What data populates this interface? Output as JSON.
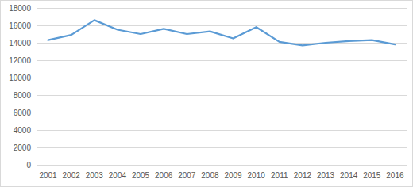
{
  "chart_data": {
    "type": "line",
    "categories": [
      "2001",
      "2002",
      "2003",
      "2004",
      "2005",
      "2006",
      "2007",
      "2008",
      "2009",
      "2010",
      "2011",
      "2012",
      "2013",
      "2014",
      "2015",
      "2016"
    ],
    "values": [
      14300,
      14900,
      16600,
      15500,
      15000,
      15600,
      15000,
      15300,
      14500,
      15800,
      14100,
      13700,
      14000,
      14200,
      14300,
      13800
    ],
    "color": "#5b9bd5",
    "ylim": [
      0,
      18000
    ],
    "yticks": [
      0,
      2000,
      4000,
      6000,
      8000,
      10000,
      12000,
      14000,
      16000,
      18000
    ],
    "grid": true
  }
}
